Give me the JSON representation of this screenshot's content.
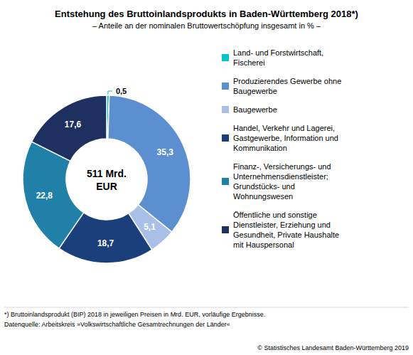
{
  "chart_data": {
    "type": "pie",
    "title": "Entstehung des Bruttoinlandsprodukts in Baden-Württemberg 2018*)",
    "subtitle": "– Anteile an der nominalen Bruttowertschöpfung insgesamt in % –",
    "categories": [
      "Land- und Forstwirtschaft,\nFischerei",
      "Produzierendes Gewerbe ohne\nBaugewerbe",
      "Baugewerbe",
      "Handel, Verkehr und Lagerei,\nGastgewerbe, Information und\nKommunikation",
      "Finanz-, Versicherungs- und\nUnternehmensdienstleister;\nGrundstücks- und\nWohnungswesen",
      "Öffentliche und sonstige\nDienstleister, Erziehung und\nGesundheit, Private Haushalte\nmit Hauspersonal"
    ],
    "values": [
      0.5,
      35.3,
      5.1,
      18.7,
      22.8,
      17.6
    ],
    "value_labels": [
      "0,5",
      "35,3",
      "5,1",
      "18,7",
      "22,8",
      "17,6"
    ],
    "colors": [
      "#00C5CC",
      "#5B8FD0",
      "#A8C0E8",
      "#1B3F7A",
      "#2080A8",
      "#1E3060"
    ],
    "data_labels": true,
    "legend": "right",
    "annotations": [
      "511 Mrd.",
      "EUR",
      "*) Bruttoinlandsprodukt (BIP) 2018 in jeweiligen Preisen in Mrd. EUR, vorläufige Ergebnisse.",
      "Datenquelle: Arbeitskreis »Volkswirtschaftliche Gesamtrechnungen der Länder«",
      "© Statistisches Landesamt Baden-Württemberg 2019"
    ]
  }
}
